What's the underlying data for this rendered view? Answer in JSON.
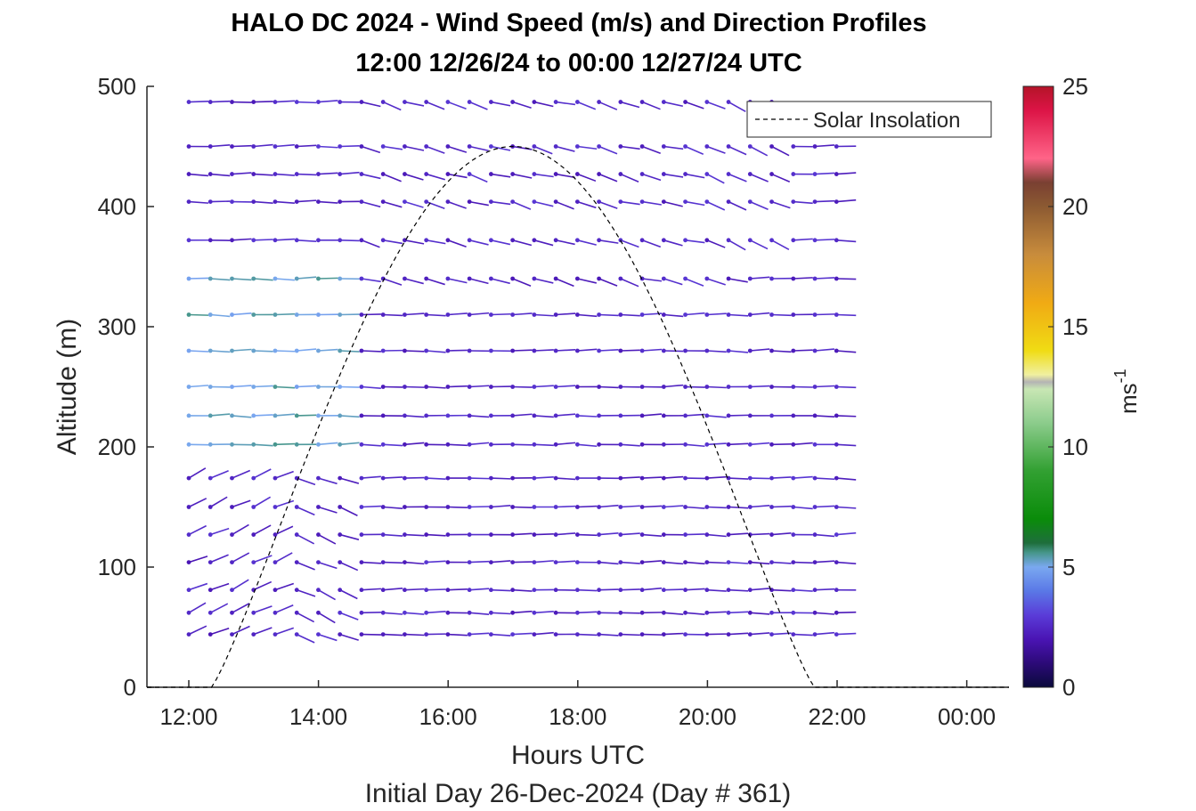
{
  "chart_data": {
    "type": "scatter",
    "subtype": "wind-barb-profile",
    "title": "HALO DC 2024 - Wind Speed (m/s) and Direction Profiles",
    "subtitle": "12:00 12/26/24 to 00:00 12/27/24  UTC",
    "xlabel": "Hours UTC",
    "xlabel2": "Initial Day 26-Dec-2024 (Day # 361)",
    "ylabel": "Altitude (m)",
    "colorbar_label": "ms",
    "colorbar_label_exp": "-1",
    "xlim": [
      11.35,
      24.7
    ],
    "ylim": [
      0,
      500
    ],
    "xticks": [
      {
        "v": 12,
        "label": "12:00"
      },
      {
        "v": 14,
        "label": "14:00"
      },
      {
        "v": 16,
        "label": "16:00"
      },
      {
        "v": 18,
        "label": "18:00"
      },
      {
        "v": 20,
        "label": "20:00"
      },
      {
        "v": 22,
        "label": "22:00"
      },
      {
        "v": 24,
        "label": "00:00"
      }
    ],
    "yticks": [
      0,
      100,
      200,
      300,
      400,
      500
    ],
    "colorbar_ticks": [
      0,
      5,
      10,
      15,
      20,
      25
    ],
    "colorbar_range": [
      0,
      25
    ],
    "legend": {
      "label": "Solar Insolation",
      "placement": "top-right"
    },
    "solar_insolation": {
      "sunrise": 12.35,
      "sunset": 21.65,
      "peak_time": 17.0,
      "peak_altitude": 450
    },
    "barb_time_range": [
      12.0,
      22.0
    ],
    "barb_time_step": 0.333,
    "top_level_time_range": [
      12.0,
      21.0
    ],
    "altitudes": [
      44,
      62,
      81,
      104,
      127,
      150,
      174,
      202,
      226,
      250,
      280,
      310,
      340,
      372,
      404,
      427,
      450,
      487
    ],
    "speed_typical_ms": 2.5,
    "speed_lowlevel_morning_ms": 2.0,
    "speed_midlevel_morning_ms": 4.8,
    "colormap": [
      {
        "v": 0,
        "c": "#0a0a3c"
      },
      {
        "v": 1,
        "c": "#2c0a78"
      },
      {
        "v": 2,
        "c": "#4a14b4"
      },
      {
        "v": 3,
        "c": "#5a3cd8"
      },
      {
        "v": 4,
        "c": "#5a78e6"
      },
      {
        "v": 5,
        "c": "#7aa8f0"
      },
      {
        "v": 5.6,
        "c": "#46968a"
      },
      {
        "v": 6,
        "c": "#1e6e3c"
      },
      {
        "v": 7,
        "c": "#0a8c0a"
      },
      {
        "v": 9,
        "c": "#32a032"
      },
      {
        "v": 11,
        "c": "#8ccc8c"
      },
      {
        "v": 12.4,
        "c": "#c8e6b4"
      },
      {
        "v": 12.7,
        "c": "#b4b4b4"
      },
      {
        "v": 13,
        "c": "#f0f0a0"
      },
      {
        "v": 14,
        "c": "#f0dc14"
      },
      {
        "v": 16,
        "c": "#f0aa14"
      },
      {
        "v": 18,
        "c": "#c88c3c"
      },
      {
        "v": 20,
        "c": "#8c5a32"
      },
      {
        "v": 21,
        "c": "#7a4032"
      },
      {
        "v": 22,
        "c": "#ff6488"
      },
      {
        "v": 24,
        "c": "#dc1446"
      },
      {
        "v": 25,
        "c": "#b41428"
      }
    ]
  }
}
